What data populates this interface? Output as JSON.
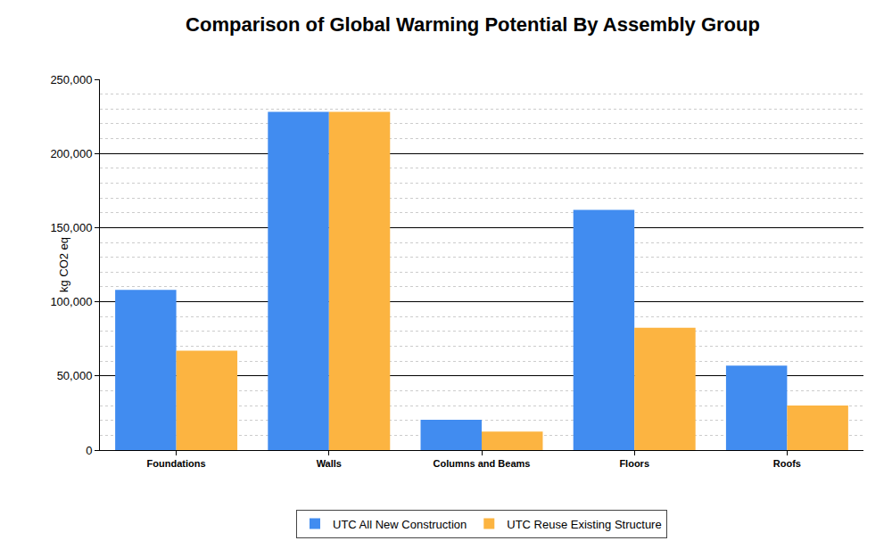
{
  "chart_data": {
    "type": "bar",
    "title": "Comparison of Global Warming Potential By Assembly Group",
    "y_label": "kg CO2 eq",
    "categories": [
      "Foundations",
      "Walls",
      "Columns and Beams",
      "Floors",
      "Roofs"
    ],
    "series": [
      {
        "name": "UTC All New Construction",
        "color": "#418cf0",
        "values": [
          108000,
          228000,
          20500,
          162000,
          57000
        ]
      },
      {
        "name": "UTC Reuse Existing Structure",
        "color": "#fcb441",
        "values": [
          67000,
          228000,
          12500,
          82500,
          30000
        ]
      }
    ],
    "ylim": [
      0,
      250000
    ],
    "yticks": [
      0,
      {
        "value": 50000,
        "label": "50,000"
      },
      {
        "value": 100000,
        "label": "100,000"
      },
      {
        "value": 150000,
        "label": "150,000"
      },
      {
        "value": 200000,
        "label": "200,000"
      },
      {
        "value": 250000,
        "label": "250,000"
      }
    ],
    "grid": true,
    "legend": "bottom"
  }
}
